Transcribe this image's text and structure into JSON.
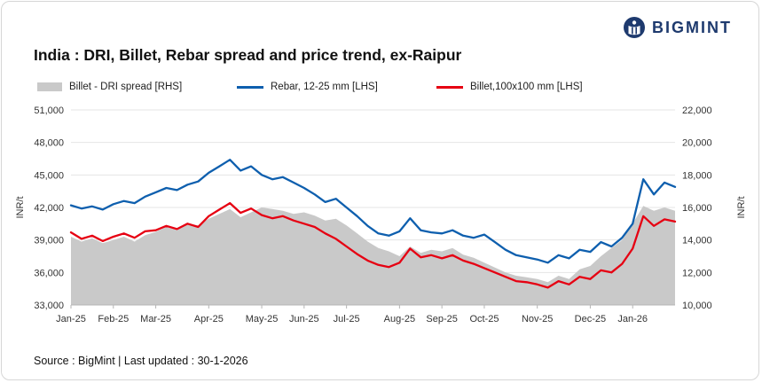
{
  "logo": {
    "text": "BIGMINT"
  },
  "title": "India : DRI, Billet, Rebar spread and price trend, ex-Raipur",
  "footer": "Source : BigMint | Last updated : 30-1-2026",
  "chart_data": {
    "type": "line",
    "title": "India : DRI, Billet, Rebar spread and price trend, ex-Raipur",
    "x_tick_labels": [
      "Jan-25",
      "Feb-25",
      "Mar-25",
      "Apr-25",
      "May-25",
      "Jun-25",
      "Jul-25",
      "Aug-25",
      "Sep-25",
      "Oct-25",
      "Nov-25",
      "Dec-25",
      "Jan-26"
    ],
    "x_tick_indices": [
      0,
      4,
      8,
      13,
      18,
      22,
      26,
      31,
      35,
      39,
      44,
      49,
      53
    ],
    "grid": "horizontal",
    "legend_position": "top",
    "left_axis": {
      "label": "INR/t",
      "min": 33000,
      "max": 51000,
      "ticks": [
        33000,
        36000,
        39000,
        42000,
        45000,
        48000,
        51000
      ]
    },
    "right_axis": {
      "label": "INR/t",
      "min": 10000,
      "max": 22000,
      "ticks": [
        10000,
        12000,
        14000,
        16000,
        18000,
        20000,
        22000
      ]
    },
    "series": [
      {
        "name": "Billet - DRI spread  [RHS]",
        "type": "area",
        "axis": "right",
        "color": "#c9c9c9",
        "values": [
          14200,
          13900,
          14100,
          13800,
          14000,
          14200,
          13900,
          14300,
          14500,
          14800,
          14600,
          15000,
          14900,
          15300,
          15600,
          15900,
          15400,
          15700,
          16000,
          15900,
          15800,
          15600,
          15700,
          15500,
          15200,
          15300,
          14900,
          14400,
          13900,
          13500,
          13300,
          13000,
          13600,
          13200,
          13400,
          13300,
          13500,
          13100,
          12900,
          12600,
          12300,
          12000,
          11800,
          11700,
          11600,
          11400,
          11800,
          11600,
          12200,
          12400,
          13000,
          13500,
          14000,
          15000,
          16100,
          15800,
          16000,
          15800
        ]
      },
      {
        "name": "Rebar, 12-25 mm [LHS]",
        "type": "line",
        "axis": "left",
        "color": "#0e5fae",
        "values": [
          42200,
          41900,
          42100,
          41800,
          42300,
          42600,
          42400,
          43000,
          43400,
          43800,
          43600,
          44100,
          44400,
          45200,
          45800,
          46400,
          45400,
          45800,
          45000,
          44600,
          44800,
          44300,
          43800,
          43200,
          42500,
          42800,
          42000,
          41200,
          40300,
          39600,
          39400,
          39800,
          41000,
          39900,
          39700,
          39600,
          39900,
          39400,
          39200,
          39500,
          38800,
          38100,
          37600,
          37400,
          37200,
          36900,
          37600,
          37300,
          38100,
          37900,
          38800,
          38400,
          39200,
          40500,
          44600,
          43200,
          44300,
          43900
        ]
      },
      {
        "name": "Billet,100x100 mm [LHS]",
        "type": "line",
        "axis": "left",
        "color": "#e60012",
        "values": [
          39700,
          39100,
          39400,
          38900,
          39300,
          39600,
          39200,
          39800,
          39900,
          40300,
          40000,
          40500,
          40200,
          41200,
          41800,
          42400,
          41500,
          41900,
          41300,
          41000,
          41200,
          40800,
          40500,
          40200,
          39600,
          39100,
          38400,
          37700,
          37100,
          36700,
          36500,
          36900,
          38200,
          37400,
          37600,
          37300,
          37600,
          37100,
          36800,
          36400,
          36000,
          35600,
          35200,
          35100,
          34900,
          34600,
          35200,
          34900,
          35600,
          35400,
          36200,
          36000,
          36800,
          38200,
          41200,
          40300,
          40900,
          40700
        ]
      }
    ]
  }
}
